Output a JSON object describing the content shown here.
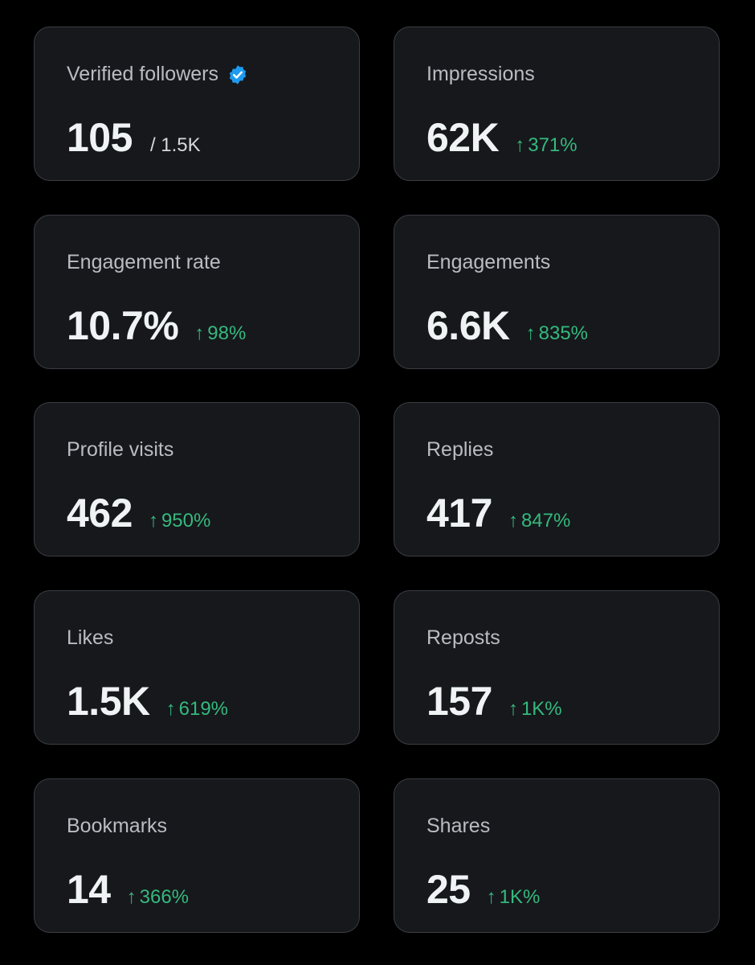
{
  "accent_color": "#1d9bf0",
  "positive_color": "#35b97d",
  "metrics": {
    "verified_followers": {
      "label": "Verified followers",
      "value": "105",
      "total": "/ 1.5K",
      "icon": "verified-badge-icon"
    },
    "impressions": {
      "label": "Impressions",
      "value": "62K",
      "change": "371%"
    },
    "engagement_rate": {
      "label": "Engagement rate",
      "value": "10.7%",
      "change": "98%"
    },
    "engagements": {
      "label": "Engagements",
      "value": "6.6K",
      "change": "835%"
    },
    "profile_visits": {
      "label": "Profile visits",
      "value": "462",
      "change": "950%"
    },
    "replies": {
      "label": "Replies",
      "value": "417",
      "change": "847%"
    },
    "likes": {
      "label": "Likes",
      "value": "1.5K",
      "change": "619%"
    },
    "reposts": {
      "label": "Reposts",
      "value": "157",
      "change": "1K%"
    },
    "bookmarks": {
      "label": "Bookmarks",
      "value": "14",
      "change": "366%"
    },
    "shares": {
      "label": "Shares",
      "value": "25",
      "change": "1K%"
    }
  }
}
